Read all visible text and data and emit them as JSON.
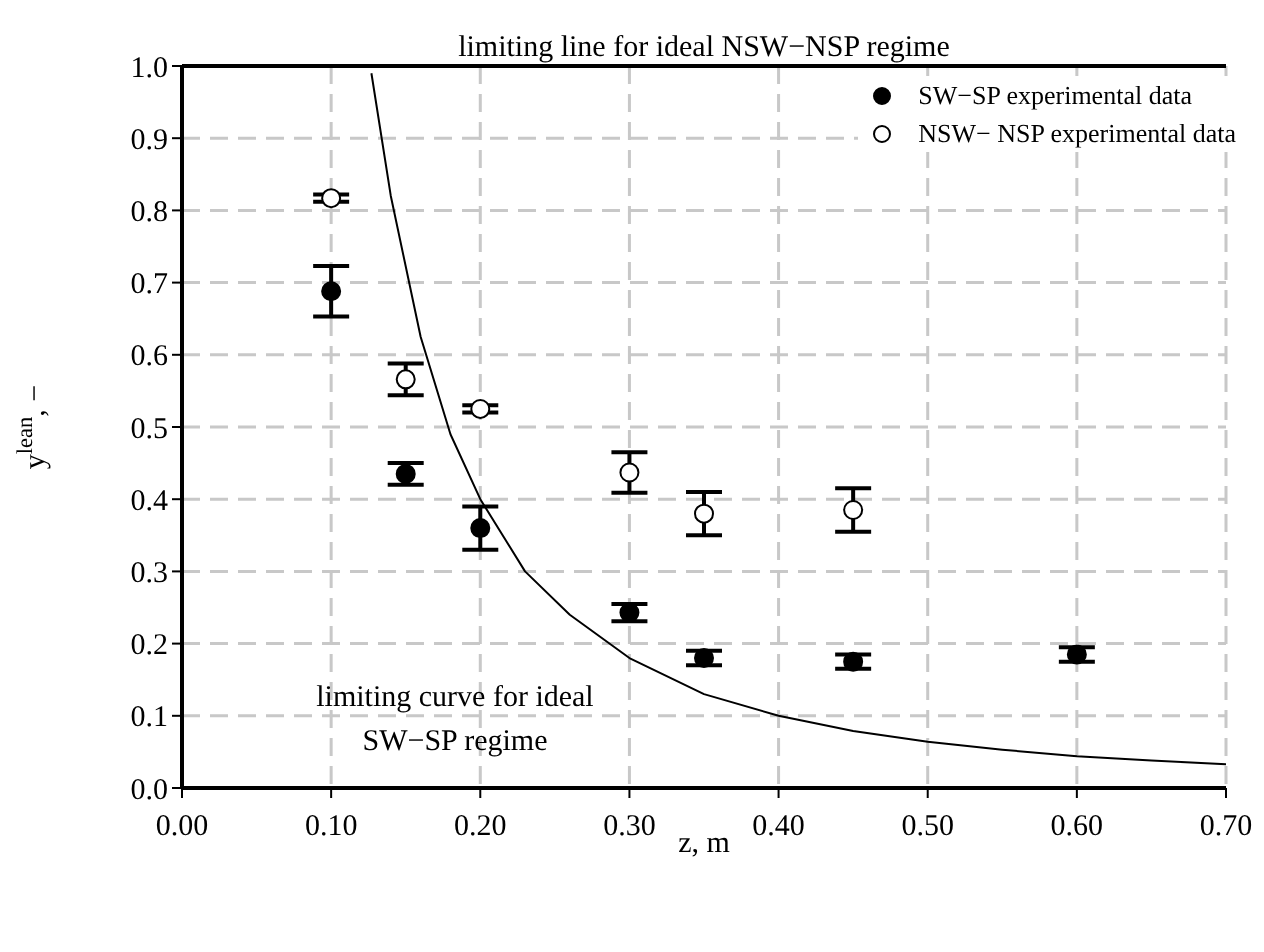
{
  "chart_data": {
    "type": "scatter",
    "xlabel": "z, m",
    "ylabel": "y$^{lean}$, −",
    "xlim": [
      0,
      0.7
    ],
    "xticks": [
      {
        "value": 0,
        "label": "0.00"
      },
      {
        "value": 0.1,
        "label": "0.10"
      },
      {
        "value": 0.2,
        "label": "0.20"
      },
      {
        "value": 0.3,
        "label": "0.30"
      },
      {
        "value": 0.4,
        "label": "0.40"
      },
      {
        "value": 0.5,
        "label": "0.50"
      },
      {
        "value": 0.6,
        "label": "0.60"
      },
      {
        "value": 0.7,
        "label": "0.70"
      }
    ],
    "ylim": [
      0,
      1
    ],
    "yticks": [
      {
        "value": 0,
        "label": "0.0"
      },
      0.1,
      0.2,
      0.3,
      0.4,
      0.5,
      0.6,
      0.7,
      0.8,
      0.9,
      {
        "value": 1,
        "label": "1.0"
      }
    ],
    "grid": true,
    "legend": "top right",
    "marker": "circle",
    "series": [
      {
        "name": "SW−SP experimental data",
        "color": "#000000",
        "x": [
          0.1,
          0.15,
          0.2,
          0.3,
          0.35,
          0.45,
          0.6
        ],
        "values": [
          0.688,
          0.435,
          0.36,
          0.243,
          0.18,
          0.175,
          0.185
        ],
        "errors": [
          0.035,
          0.015,
          0.03,
          0.012,
          0.01,
          0.01,
          0.01
        ]
      },
      {
        "name": "NSW− NSP experimental data",
        "color": "#ffffff",
        "x": [
          0.1,
          0.15,
          0.2,
          0.3,
          0.35,
          0.45
        ],
        "values": [
          0.817,
          0.566,
          0.525,
          0.437,
          0.38,
          0.385
        ],
        "errors": [
          0.005,
          0.022,
          0.005,
          0.028,
          0.03,
          0.03
        ]
      },
      {
        "type": "line",
        "color": "#000000",
        "marker": "none",
        "x": [
          0.127,
          0.14,
          0.16,
          0.18,
          0.2,
          0.23,
          0.26,
          0.3,
          0.35,
          0.4,
          0.45,
          0.5,
          0.55,
          0.6,
          0.65,
          0.7
        ],
        "values": [
          0.99,
          0.82,
          0.625,
          0.49,
          0.4,
          0.3,
          0.24,
          0.18,
          0.13,
          0.1,
          0.079,
          0.064,
          0.053,
          0.044,
          0.038,
          0.033
        ]
      }
    ],
    "ref_lines": [
      {
        "axis": "y",
        "value": 1,
        "label": "limiting line for ideal NSW−NSP regime",
        "color": "#000000"
      }
    ],
    "annotations": [
      "limiting curve for ideal SW−SP regime"
    ]
  }
}
